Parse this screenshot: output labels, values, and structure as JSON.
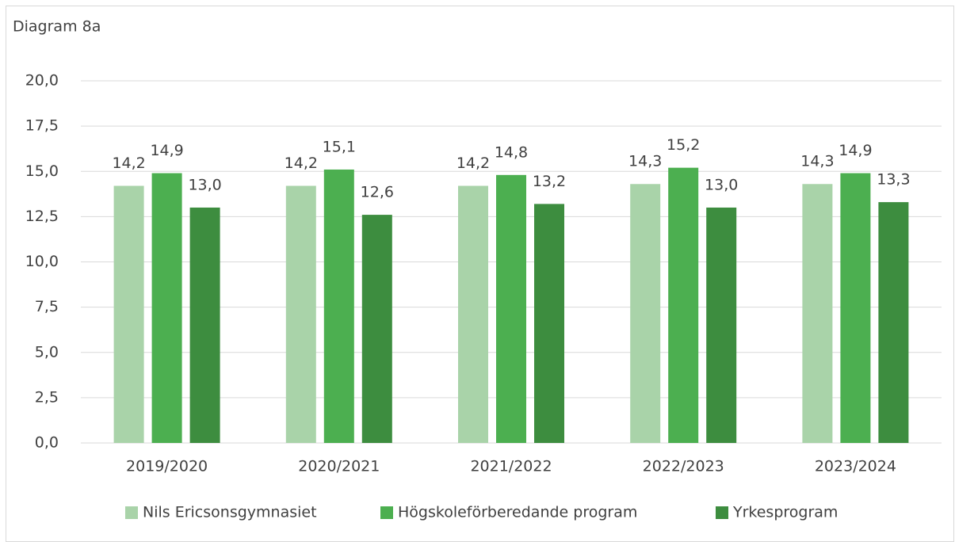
{
  "chart_data": {
    "type": "bar",
    "title": "Diagram 8a",
    "categories": [
      "2019/2020",
      "2020/2021",
      "2021/2022",
      "2022/2023",
      "2023/2024"
    ],
    "series": [
      {
        "name": "Nils Ericsonsgymnasiet",
        "color": "#a9d3a9",
        "values": [
          14.2,
          14.2,
          14.2,
          14.3,
          14.3
        ],
        "value_labels": [
          "14,2",
          "14,2",
          "14,2",
          "14,3",
          "14,3"
        ]
      },
      {
        "name": "Högskoleförberedande program",
        "color": "#4caf50",
        "values": [
          14.9,
          15.1,
          14.8,
          15.2,
          14.9
        ],
        "value_labels": [
          "14,9",
          "15,1",
          "14,8",
          "15,2",
          "14,9"
        ]
      },
      {
        "name": "Yrkesprogram",
        "color": "#3d8d3f",
        "values": [
          13.0,
          12.6,
          13.2,
          13.0,
          13.3
        ],
        "value_labels": [
          "13,0",
          "12,6",
          "13,2",
          "13,0",
          "13,3"
        ]
      }
    ],
    "ylim": [
      0,
      20
    ],
    "yticks": [
      {
        "value": 0,
        "label": "0,0"
      },
      {
        "value": 2.5,
        "label": "2,5"
      },
      {
        "value": 5,
        "label": "5,0"
      },
      {
        "value": 7.5,
        "label": "7,5"
      },
      {
        "value": 10,
        "label": "10,0"
      },
      {
        "value": 12.5,
        "label": "12,5"
      },
      {
        "value": 15,
        "label": "15,0"
      },
      {
        "value": 17.5,
        "label": "17,5"
      },
      {
        "value": 20,
        "label": "20,0"
      }
    ],
    "grid": true,
    "legend": "bottom"
  }
}
